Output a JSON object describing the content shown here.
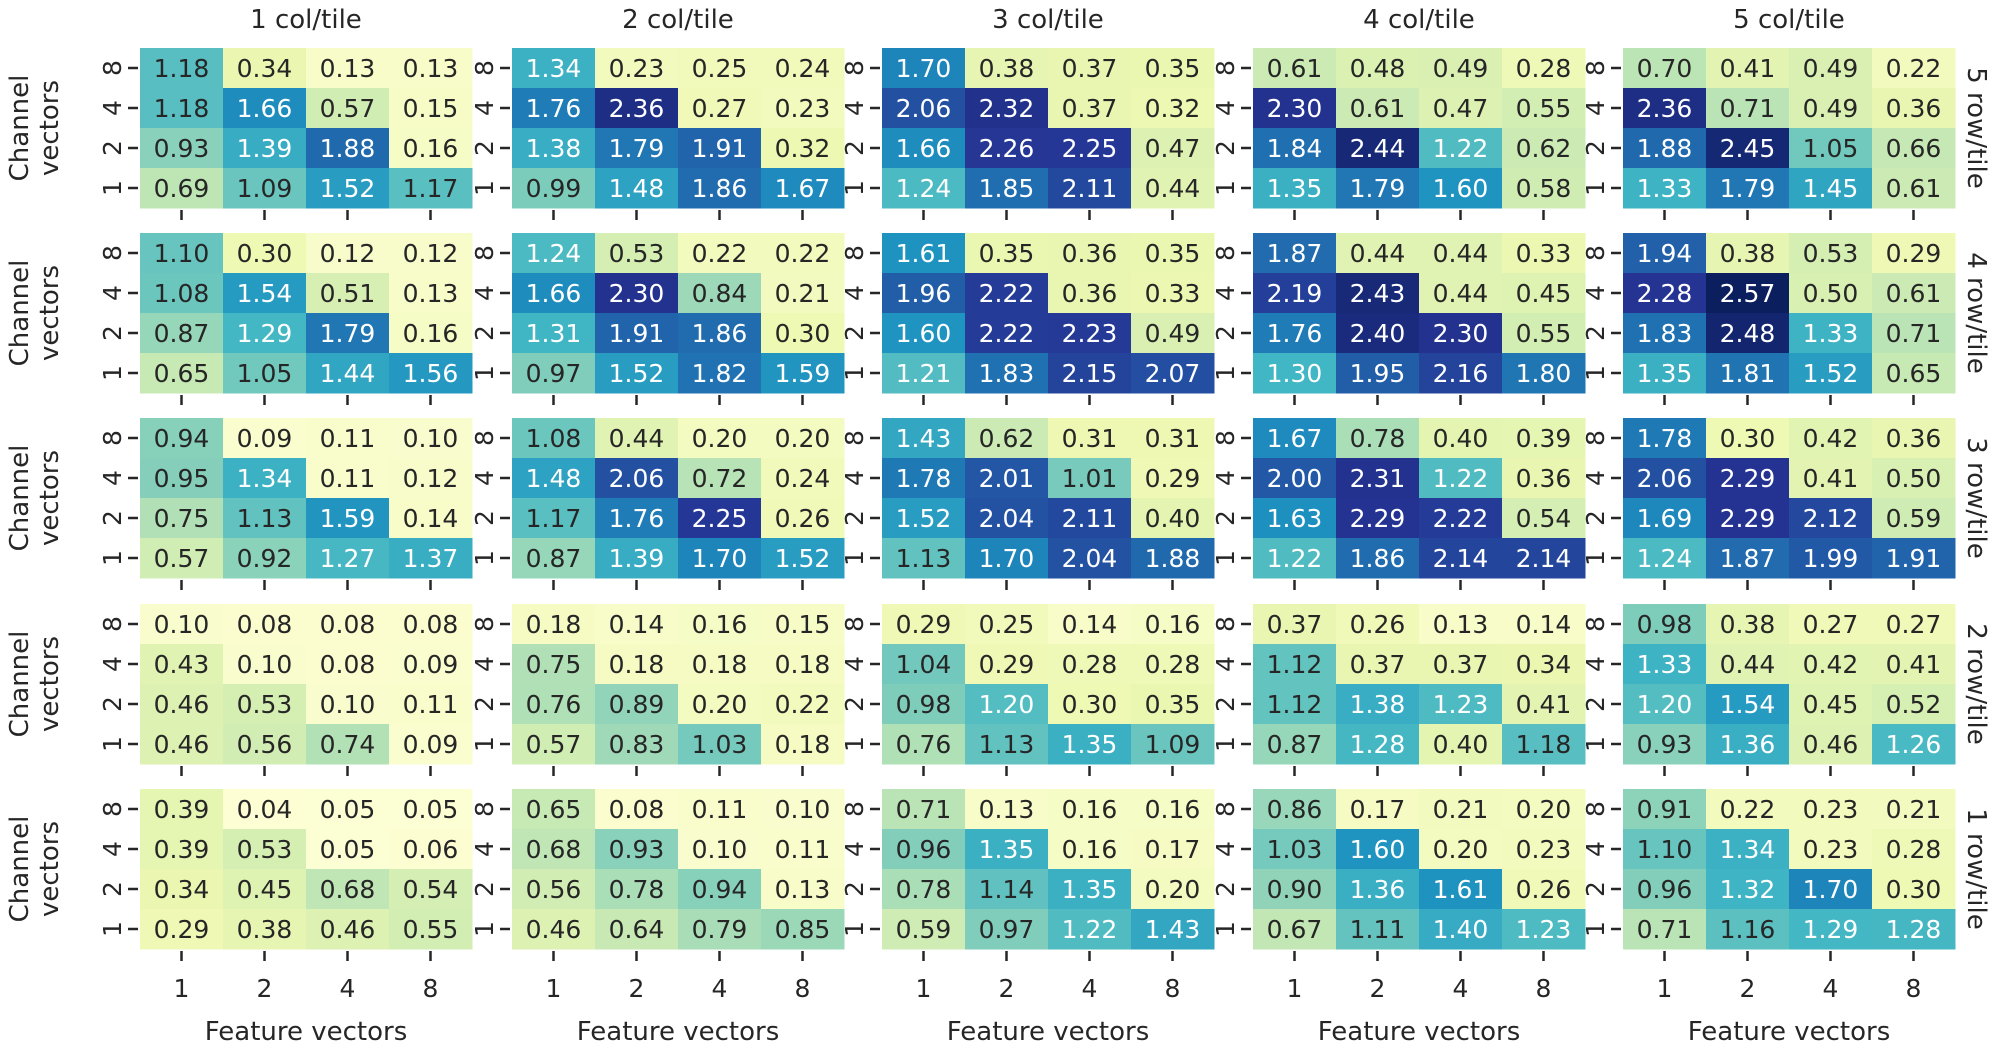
{
  "chart_data": {
    "type": "heatmap",
    "title": "",
    "xlabel": "Feature vectors",
    "ylabel": "Channel vectors",
    "x_ticks": [
      "1",
      "2",
      "4",
      "8"
    ],
    "y_ticks_top_to_bottom": [
      "8",
      "4",
      "2",
      "1"
    ],
    "col_titles": [
      "1 col/tile",
      "2 col/tile",
      "3 col/tile",
      "4 col/tile",
      "5 col/tile"
    ],
    "row_titles": [
      "5 row/tile",
      "4 row/tile",
      "3 row/tile",
      "2 row/tile",
      "1 row/tile"
    ],
    "color_scale": {
      "min": 0.0,
      "max": 2.6,
      "map": "YlGnBu",
      "mid_text_threshold": 1.2
    },
    "panels": [
      [
        [
          [
            1.18,
            0.34,
            0.13,
            0.13
          ],
          [
            1.18,
            1.66,
            0.57,
            0.15
          ],
          [
            0.93,
            1.39,
            1.88,
            0.16
          ],
          [
            0.69,
            1.09,
            1.52,
            1.17
          ]
        ],
        [
          [
            1.34,
            0.23,
            0.25,
            0.24
          ],
          [
            1.76,
            2.36,
            0.27,
            0.23
          ],
          [
            1.38,
            1.79,
            1.91,
            0.32
          ],
          [
            0.99,
            1.48,
            1.86,
            1.67
          ]
        ],
        [
          [
            1.7,
            0.38,
            0.37,
            0.35
          ],
          [
            2.06,
            2.32,
            0.37,
            0.32
          ],
          [
            1.66,
            2.26,
            2.25,
            0.47
          ],
          [
            1.24,
            1.85,
            2.11,
            0.44
          ]
        ],
        [
          [
            0.61,
            0.48,
            0.49,
            0.28
          ],
          [
            2.3,
            0.61,
            0.47,
            0.55
          ],
          [
            1.84,
            2.44,
            1.22,
            0.62
          ],
          [
            1.35,
            1.79,
            1.6,
            0.58
          ]
        ],
        [
          [
            0.7,
            0.41,
            0.49,
            0.22
          ],
          [
            2.36,
            0.71,
            0.49,
            0.36
          ],
          [
            1.88,
            2.45,
            1.05,
            0.66
          ],
          [
            1.33,
            1.79,
            1.45,
            0.61
          ]
        ]
      ],
      [
        [
          [
            1.1,
            0.3,
            0.12,
            0.12
          ],
          [
            1.08,
            1.54,
            0.51,
            0.13
          ],
          [
            0.87,
            1.29,
            1.79,
            0.16
          ],
          [
            0.65,
            1.05,
            1.44,
            1.56
          ]
        ],
        [
          [
            1.24,
            0.53,
            0.22,
            0.22
          ],
          [
            1.66,
            2.3,
            0.84,
            0.21
          ],
          [
            1.31,
            1.91,
            1.86,
            0.3
          ],
          [
            0.97,
            1.52,
            1.82,
            1.59
          ]
        ],
        [
          [
            1.61,
            0.35,
            0.36,
            0.35
          ],
          [
            1.96,
            2.22,
            0.36,
            0.33
          ],
          [
            1.6,
            2.22,
            2.23,
            0.49
          ],
          [
            1.21,
            1.83,
            2.15,
            2.07
          ]
        ],
        [
          [
            1.87,
            0.44,
            0.44,
            0.33
          ],
          [
            2.19,
            2.43,
            0.44,
            0.45
          ],
          [
            1.76,
            2.4,
            2.3,
            0.55
          ],
          [
            1.3,
            1.95,
            2.16,
            1.8
          ]
        ],
        [
          [
            1.94,
            0.38,
            0.53,
            0.29
          ],
          [
            2.28,
            2.57,
            0.5,
            0.61
          ],
          [
            1.83,
            2.48,
            1.33,
            0.71
          ],
          [
            1.35,
            1.81,
            1.52,
            0.65
          ]
        ]
      ],
      [
        [
          [
            0.94,
            0.09,
            0.11,
            0.1
          ],
          [
            0.95,
            1.34,
            0.11,
            0.12
          ],
          [
            0.75,
            1.13,
            1.59,
            0.14
          ],
          [
            0.57,
            0.92,
            1.27,
            1.37
          ]
        ],
        [
          [
            1.08,
            0.44,
            0.2,
            0.2
          ],
          [
            1.48,
            2.06,
            0.72,
            0.24
          ],
          [
            1.17,
            1.76,
            2.25,
            0.26
          ],
          [
            0.87,
            1.39,
            1.7,
            1.52
          ]
        ],
        [
          [
            1.43,
            0.62,
            0.31,
            0.31
          ],
          [
            1.78,
            2.01,
            1.01,
            0.29
          ],
          [
            1.52,
            2.04,
            2.11,
            0.4
          ],
          [
            1.13,
            1.7,
            2.04,
            1.88
          ]
        ],
        [
          [
            1.67,
            0.78,
            0.4,
            0.39
          ],
          [
            2.0,
            2.31,
            1.22,
            0.36
          ],
          [
            1.63,
            2.29,
            2.22,
            0.54
          ],
          [
            1.22,
            1.86,
            2.14,
            2.14
          ]
        ],
        [
          [
            1.78,
            0.3,
            0.42,
            0.36
          ],
          [
            2.06,
            2.29,
            0.41,
            0.5
          ],
          [
            1.69,
            2.29,
            2.12,
            0.59
          ],
          [
            1.24,
            1.87,
            1.99,
            1.91
          ]
        ]
      ],
      [
        [
          [
            0.1,
            0.08,
            0.08,
            0.08
          ],
          [
            0.43,
            0.1,
            0.08,
            0.09
          ],
          [
            0.46,
            0.53,
            0.1,
            0.11
          ],
          [
            0.46,
            0.56,
            0.74,
            0.09
          ]
        ],
        [
          [
            0.18,
            0.14,
            0.16,
            0.15
          ],
          [
            0.75,
            0.18,
            0.18,
            0.18
          ],
          [
            0.76,
            0.89,
            0.2,
            0.22
          ],
          [
            0.57,
            0.83,
            1.03,
            0.18
          ]
        ],
        [
          [
            0.29,
            0.25,
            0.14,
            0.16
          ],
          [
            1.04,
            0.29,
            0.28,
            0.28
          ],
          [
            0.98,
            1.2,
            0.3,
            0.35
          ],
          [
            0.76,
            1.13,
            1.35,
            1.09
          ]
        ],
        [
          [
            0.37,
            0.26,
            0.13,
            0.14
          ],
          [
            1.12,
            0.37,
            0.37,
            0.34
          ],
          [
            1.12,
            1.38,
            1.23,
            0.41
          ],
          [
            0.87,
            1.28,
            0.4,
            1.18
          ]
        ],
        [
          [
            0.98,
            0.38,
            0.27,
            0.27
          ],
          [
            1.33,
            0.44,
            0.42,
            0.41
          ],
          [
            1.2,
            1.54,
            0.45,
            0.52
          ],
          [
            0.93,
            1.36,
            0.46,
            1.26
          ]
        ]
      ],
      [
        [
          [
            0.39,
            0.04,
            0.05,
            0.05
          ],
          [
            0.39,
            0.53,
            0.05,
            0.06
          ],
          [
            0.34,
            0.45,
            0.68,
            0.54
          ],
          [
            0.29,
            0.38,
            0.46,
            0.55
          ]
        ],
        [
          [
            0.65,
            0.08,
            0.11,
            0.1
          ],
          [
            0.68,
            0.93,
            0.1,
            0.11
          ],
          [
            0.56,
            0.78,
            0.94,
            0.13
          ],
          [
            0.46,
            0.64,
            0.79,
            0.85
          ]
        ],
        [
          [
            0.71,
            0.13,
            0.16,
            0.16
          ],
          [
            0.96,
            1.35,
            0.16,
            0.17
          ],
          [
            0.78,
            1.14,
            1.35,
            0.2
          ],
          [
            0.59,
            0.97,
            1.22,
            1.43
          ]
        ],
        [
          [
            0.86,
            0.17,
            0.21,
            0.2
          ],
          [
            1.03,
            1.6,
            0.2,
            0.23
          ],
          [
            0.9,
            1.36,
            1.61,
            0.26
          ],
          [
            0.67,
            1.11,
            1.4,
            1.23
          ]
        ],
        [
          [
            0.91,
            0.22,
            0.23,
            0.21
          ],
          [
            1.1,
            1.34,
            0.23,
            0.28
          ],
          [
            0.96,
            1.32,
            1.7,
            0.3
          ],
          [
            0.71,
            1.16,
            1.29,
            1.28
          ]
        ]
      ]
    ]
  }
}
